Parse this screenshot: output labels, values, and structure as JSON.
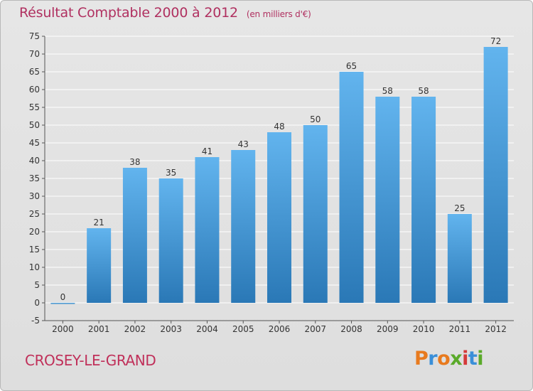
{
  "title": {
    "main": "Résultat Comptable 2000 à 2012",
    "unit": "(en milliers d'€)"
  },
  "commune": "CROSEY-LE-GRAND",
  "logo": {
    "letters": [
      "P",
      "r",
      "o",
      "x",
      "i",
      "t",
      "i"
    ],
    "colors": [
      "#e87a1e",
      "#3a8fd8",
      "#e87a1e",
      "#5aaa2a",
      "#d43a3a",
      "#3a8fd8",
      "#5aaa2a"
    ]
  },
  "colors": {
    "bar_light": "#62b4ee",
    "bar_dark": "#2a78b6",
    "title": "#b03060",
    "grid": "#ffffff"
  },
  "chart_data": {
    "type": "bar",
    "title": "Résultat Comptable 2000 à 2012",
    "xlabel": "",
    "ylabel": "",
    "categories": [
      "2000",
      "2001",
      "2002",
      "2003",
      "2004",
      "2005",
      "2006",
      "2007",
      "2008",
      "2009",
      "2010",
      "2011",
      "2012"
    ],
    "values": [
      0,
      21,
      38,
      35,
      41,
      43,
      48,
      50,
      65,
      58,
      58,
      25,
      72
    ],
    "ylim": [
      -5,
      75
    ],
    "yticks": [
      -5,
      0,
      5,
      10,
      15,
      20,
      25,
      30,
      35,
      40,
      45,
      50,
      55,
      60,
      65,
      70,
      75
    ],
    "grid": "horizontal",
    "legend": "none"
  }
}
